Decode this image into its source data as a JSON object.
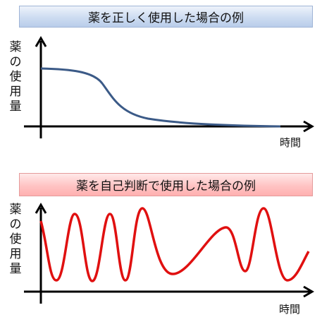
{
  "top_panel": {
    "title": "薬を正しく使用した場合の例",
    "y_label": "薬の使用量",
    "x_label": "時間",
    "curve_color": "#3b5a87"
  },
  "bottom_panel": {
    "title": "薬を自己判断で使用した場合の例",
    "y_label": "薬の使用量",
    "x_label": "時間",
    "curve_color": "#e01010"
  },
  "axis_color": "#000000"
}
